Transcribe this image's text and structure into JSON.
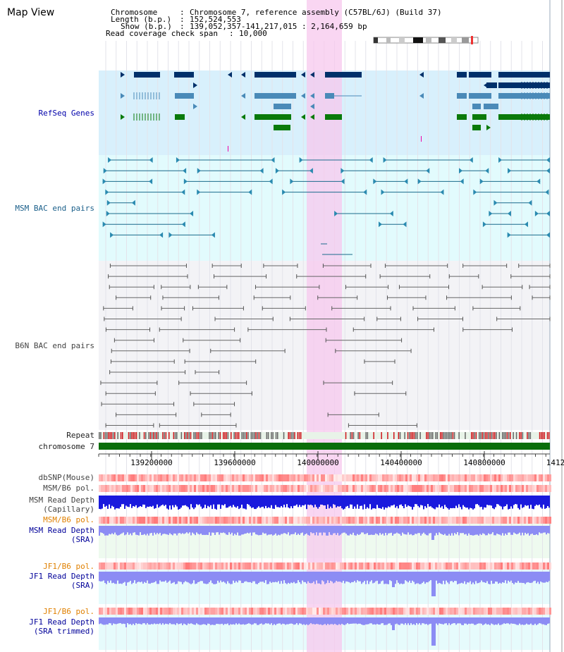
{
  "page_title": "Map View",
  "header": {
    "chromosome_key": "Chromosome",
    "chromosome_value": "Chromosome 7, reference assembly (C57BL/6J) (Build 37)",
    "length_key": "Length (b.p.)",
    "length_value": "152,524,553",
    "show_key": "Show (b.p.)",
    "show_value": "139,052,357-141,217,015 : 2,164,659 bp",
    "coverage_key": "Read coverage check span",
    "coverage_value": "10,000"
  },
  "tracks": {
    "refseq": "RefSeq Genes",
    "msm_bac": "MSM BAC end pairs",
    "b6n_bac": "B6N BAC end pairs",
    "repeat": "Repeat",
    "chromosome": "chromosome 7",
    "dbsnp": "dbSNP(Mouse)",
    "msm_b6_pol_1": "MSM/B6 pol.",
    "msm_read_depth_cap_1": "MSM Read Depth",
    "msm_read_depth_cap_2": "(Capillary)",
    "msm_b6_pol_2": "MSM/B6 pol.",
    "msm_read_depth_sra_1": "MSM Read Depth",
    "msm_read_depth_sra_2": "(SRA)",
    "jf1_b6_pol_1": "JF1/B6 pol.",
    "jf1_read_depth_sra_1": "JF1 Read Depth",
    "jf1_read_depth_sra_2": "(SRA)",
    "jf1_b6_pol_2": "JF1/B6 pol.",
    "jf1_read_depth_trim_1": "JF1 Read Depth",
    "jf1_read_depth_trim_2": "(SRA trimmed)"
  },
  "axis": {
    "ticks": [
      "139200000",
      "139600000",
      "140000000",
      "140400000",
      "140800000",
      "1412"
    ]
  },
  "colors": {
    "highlight": "#f7c8ee",
    "refseq_bg": "#d8f0fc",
    "msm_bg": "#e2fbfd",
    "b6n_bg": "#f3f3f6",
    "gene_navy": "#00306a",
    "gene_blue": "#4a8ab8",
    "gene_green": "#0a7a0a",
    "depth_blue": "#1a1add",
    "depth_light": "#8c8cf4"
  }
}
